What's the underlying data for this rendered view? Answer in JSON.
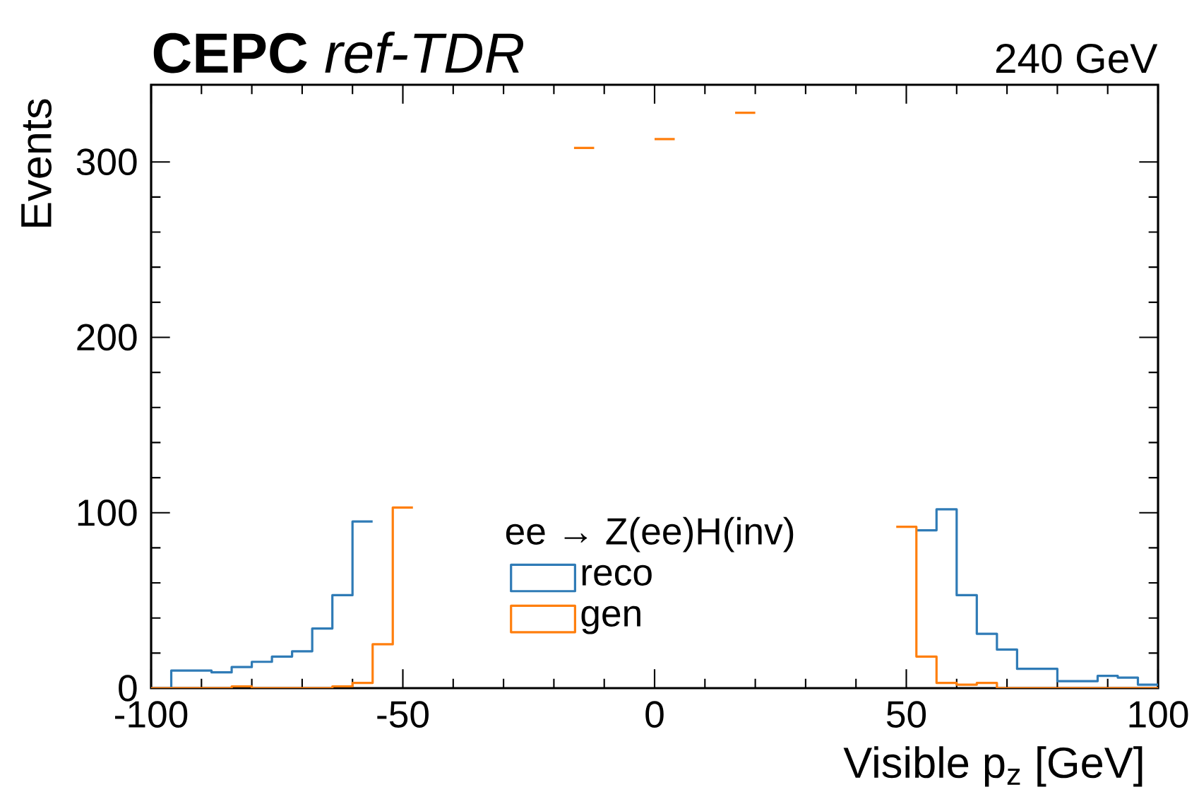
{
  "chart_data": {
    "type": "step",
    "title": "**CEPC** *ref-TDR*",
    "subtitle": "240 GeV",
    "xlabel": "Visible p$_{z}$ [GeV]",
    "ylabel": "Events",
    "legend_title": "ee → Z(ee)H(inv)",
    "x": [
      -100,
      -96,
      -92,
      -88,
      -84,
      -80,
      -76,
      -72,
      -68,
      -64,
      -60,
      -56,
      -52,
      -48,
      -44,
      -40,
      -36,
      -32,
      -28,
      -24,
      -20,
      -16,
      -12,
      -8,
      -4,
      0,
      4,
      8,
      12,
      16,
      20,
      24,
      28,
      32,
      36,
      40,
      44,
      48,
      52,
      56,
      60,
      64,
      68,
      72,
      76,
      80,
      84,
      88,
      92,
      96,
      100
    ],
    "series": [
      {
        "name": "reco",
        "color": "#2f7bb6",
        "values": [
          0,
          10,
          10,
          9,
          12,
          15,
          18,
          21,
          34,
          53,
          95,
          null,
          null,
          null,
          null,
          null,
          null,
          null,
          null,
          null,
          null,
          null,
          null,
          null,
          null,
          null,
          null,
          null,
          null,
          null,
          null,
          null,
          null,
          null,
          null,
          null,
          null,
          null,
          90,
          102,
          53,
          31,
          22,
          11,
          11,
          4,
          4,
          7,
          6,
          2,
          2
        ]
      },
      {
        "name": "gen",
        "color": "#ff7f0e",
        "values": [
          0,
          0,
          0,
          0,
          1,
          0,
          0,
          0,
          0,
          1,
          3,
          25,
          103,
          null,
          null,
          null,
          null,
          null,
          null,
          null,
          null,
          308,
          null,
          null,
          null,
          313,
          null,
          null,
          null,
          328,
          null,
          null,
          null,
          null,
          null,
          null,
          null,
          92,
          18,
          3,
          2,
          3,
          0,
          0,
          0,
          0,
          0,
          0,
          0,
          0,
          0
        ]
      }
    ],
    "xlim": [
      -100,
      100
    ],
    "ylim": [
      0,
      344
    ],
    "xticks": [
      -100,
      -50,
      0,
      50,
      100
    ],
    "yticks": [
      0,
      100,
      200,
      300
    ],
    "legend": "bottom"
  }
}
